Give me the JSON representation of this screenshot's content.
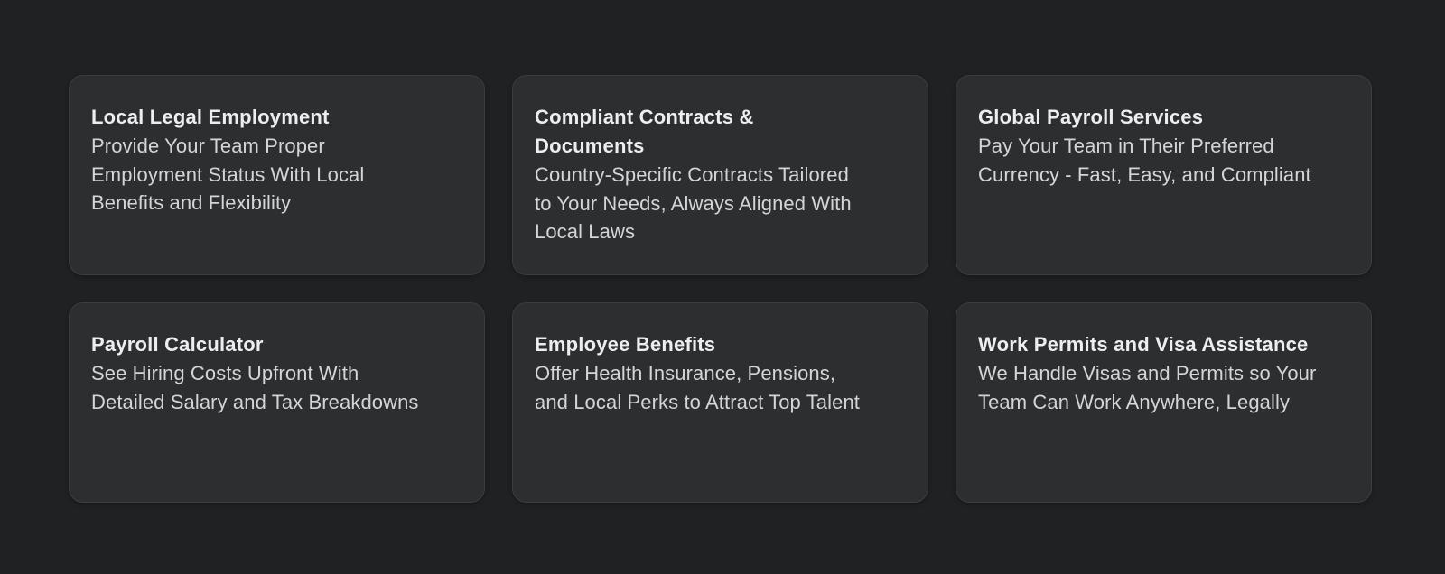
{
  "page": {
    "background_color": "#202122",
    "card_background_color": "#2c2e30",
    "card_border_color": "#3b3d40",
    "title_color": "#edeef0",
    "body_color": "#d3d5d7"
  },
  "cards": [
    {
      "title": "Local Legal Employment",
      "description": "Provide Your Team Proper\nEmployment Status With Local\nBenefits and Flexibility"
    },
    {
      "title": "Compliant Contracts &\nDocuments",
      "description": "Country-Specific Contracts Tailored\nto Your Needs, Always Aligned With\nLocal Laws"
    },
    {
      "title": "Global Payroll Services",
      "description": "Pay Your Team in Their Preferred\nCurrency - Fast, Easy, and Compliant"
    },
    {
      "title": "Payroll Calculator",
      "description": "See Hiring Costs Upfront With\nDetailed Salary and Tax Breakdowns"
    },
    {
      "title": "Employee Benefits",
      "description": "Offer Health Insurance, Pensions,\nand Local Perks to Attract Top Talent"
    },
    {
      "title": "Work Permits and Visa Assistance",
      "description": "We Handle Visas and Permits so Your\nTeam Can Work Anywhere, Legally"
    }
  ]
}
